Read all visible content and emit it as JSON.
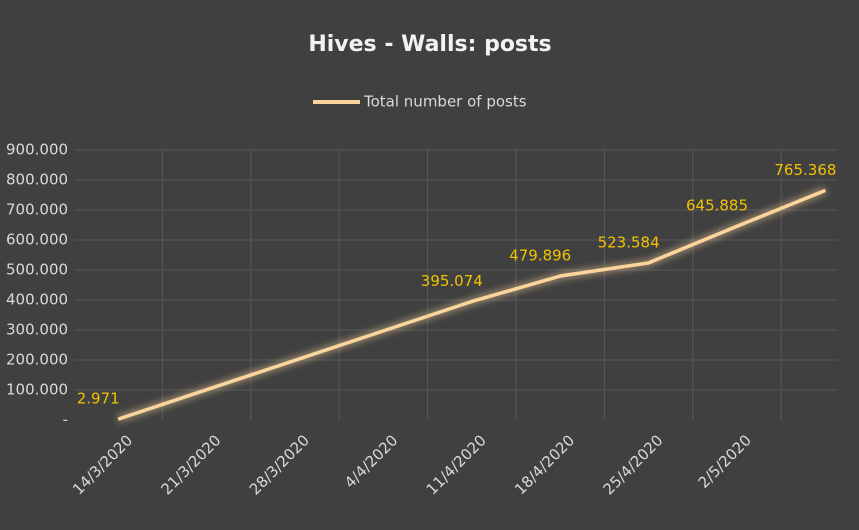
{
  "chart_data": {
    "type": "line",
    "title": "Hives - Walls: posts",
    "categories": [
      "14/3/2020",
      "21/3/2020",
      "28/3/2020",
      "4/4/2020",
      "11/4/2020",
      "18/4/2020",
      "25/4/2020",
      "2/5/2020",
      null
    ],
    "series": [
      {
        "name": "Total number of posts",
        "color": "#fcd59b",
        "values": [
          2971,
          101000,
          199000,
          297000,
          395074,
          479896,
          523584,
          645885,
          765368
        ],
        "value_labels": [
          "2.971",
          null,
          null,
          null,
          "395.074",
          "479.896",
          "523.584",
          "645.885",
          "765.368"
        ],
        "label_color": "#f2c200"
      }
    ],
    "ylim": [
      0,
      900000
    ],
    "yticks": [
      {
        "value": 0,
        "label": "-"
      },
      {
        "value": 100000,
        "label": "100.000"
      },
      {
        "value": 200000,
        "label": "200.000"
      },
      {
        "value": 300000,
        "label": "300.000"
      },
      {
        "value": 400000,
        "label": "400.000"
      },
      {
        "value": 500000,
        "label": "500.000"
      },
      {
        "value": 600000,
        "label": "600.000"
      },
      {
        "value": 700000,
        "label": "700.000"
      },
      {
        "value": 800000,
        "label": "800.000"
      },
      {
        "value": 900000,
        "label": "900.000"
      }
    ],
    "grid": true,
    "legend": "top"
  }
}
